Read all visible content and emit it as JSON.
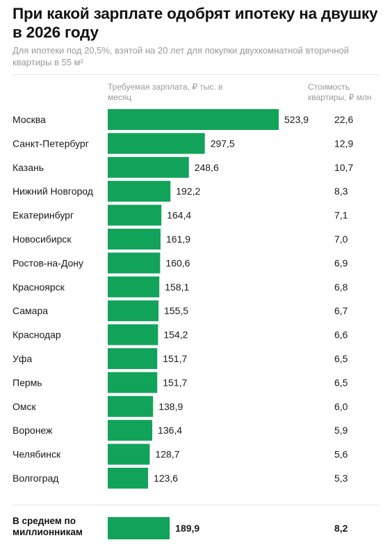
{
  "header": {
    "title": "При какой зарплате одобрят ипотеку на двушку в 2026 году",
    "subtitle": "Для ипотеки под 20,5%, взятой на 20 лет для покупки двухкомнатной вторичной квартиры в 55 м²"
  },
  "columns": {
    "salary": "Требуемая зарплата, ₽ тыс. в месяц",
    "cost": "Стоимость квартиры, ₽ млн"
  },
  "colors": {
    "bar": "#12a35a"
  },
  "chart_data": {
    "type": "bar",
    "orientation": "horizontal",
    "categories": [
      "Москва",
      "Санкт-Петербург",
      "Казань",
      "Нижний Новгород",
      "Екатеринбург",
      "Новосибирск",
      "Ростов-на-Дону",
      "Красноярск",
      "Самара",
      "Краснодар",
      "Уфа",
      "Пермь",
      "Омск",
      "Воронеж",
      "Челябинск",
      "Волгоград"
    ],
    "values": [
      523.9,
      297.5,
      248.6,
      192.2,
      164.4,
      161.9,
      160.6,
      158.1,
      155.5,
      154.2,
      151.7,
      151.7,
      138.9,
      136.4,
      128.7,
      123.6
    ],
    "value_labels": [
      "523,9",
      "297,5",
      "248,6",
      "192,2",
      "164,4",
      "161,9",
      "160,6",
      "158,1",
      "155,5",
      "154,2",
      "151,7",
      "151,7",
      "138,9",
      "136,4",
      "128,7",
      "123,6"
    ],
    "cost_labels": [
      "22,6",
      "12,9",
      "10,7",
      "8,3",
      "7,1",
      "7,0",
      "6,9",
      "6,8",
      "6,7",
      "6,6",
      "6,5",
      "6,5",
      "6,0",
      "5,9",
      "5,6",
      "5,3"
    ],
    "xlim": [
      0,
      523.9
    ],
    "average": {
      "label": "В среднем по миллионникам",
      "value": 189.9,
      "value_label": "189,9",
      "cost_label": "8,2"
    }
  }
}
